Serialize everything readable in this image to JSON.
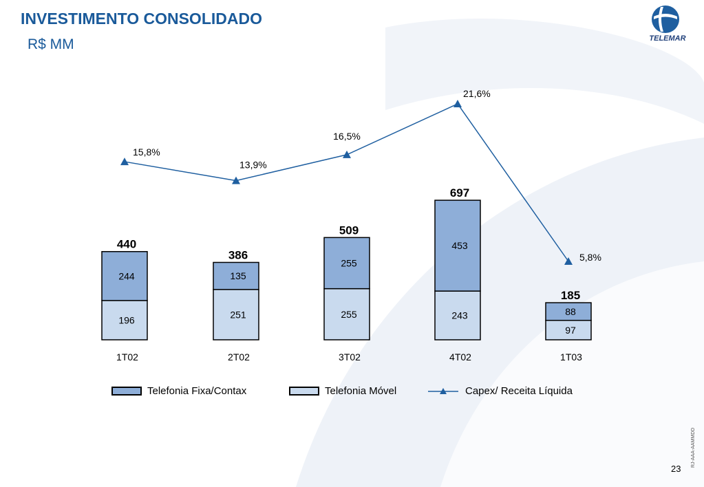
{
  "header": {
    "title": "INVESTIMENTO CONSOLIDADO",
    "subtitle": "R$ MM"
  },
  "logo": {
    "icon": "telemar-globe-icon",
    "text": "TELEMAR"
  },
  "footer": {
    "side_code": "RJ-AAA-AAMMDD",
    "page_number": "23"
  },
  "colors": {
    "fixa": "#8eaed8",
    "movel": "#c9daee",
    "line": "#1f5fa0",
    "title": "#1a5a9a"
  },
  "chart_data": {
    "type": "bar",
    "stacked": true,
    "categories": [
      "1T02",
      "2T02",
      "3T02",
      "4T02",
      "1T03"
    ],
    "series": [
      {
        "name": "Telefonia Móvel",
        "values": [
          196,
          251,
          255,
          243,
          97
        ]
      },
      {
        "name": "Telefonia Fixa/Contax",
        "values": [
          244,
          135,
          255,
          453,
          88
        ]
      }
    ],
    "totals": [
      440,
      386,
      509,
      697,
      185
    ],
    "line_series": {
      "name": "Capex/ Receita Líquida",
      "values": [
        15.8,
        13.9,
        16.5,
        21.6,
        5.8
      ],
      "labels": [
        "15,8%",
        "13,9%",
        "16,5%",
        "21,6%",
        "5,8%"
      ]
    },
    "legend": [
      "Telefonia Fixa/Contax",
      "Telefonia Móvel",
      "Capex/ Receita Líquida"
    ],
    "legend_position": "bottom",
    "grid": false
  }
}
